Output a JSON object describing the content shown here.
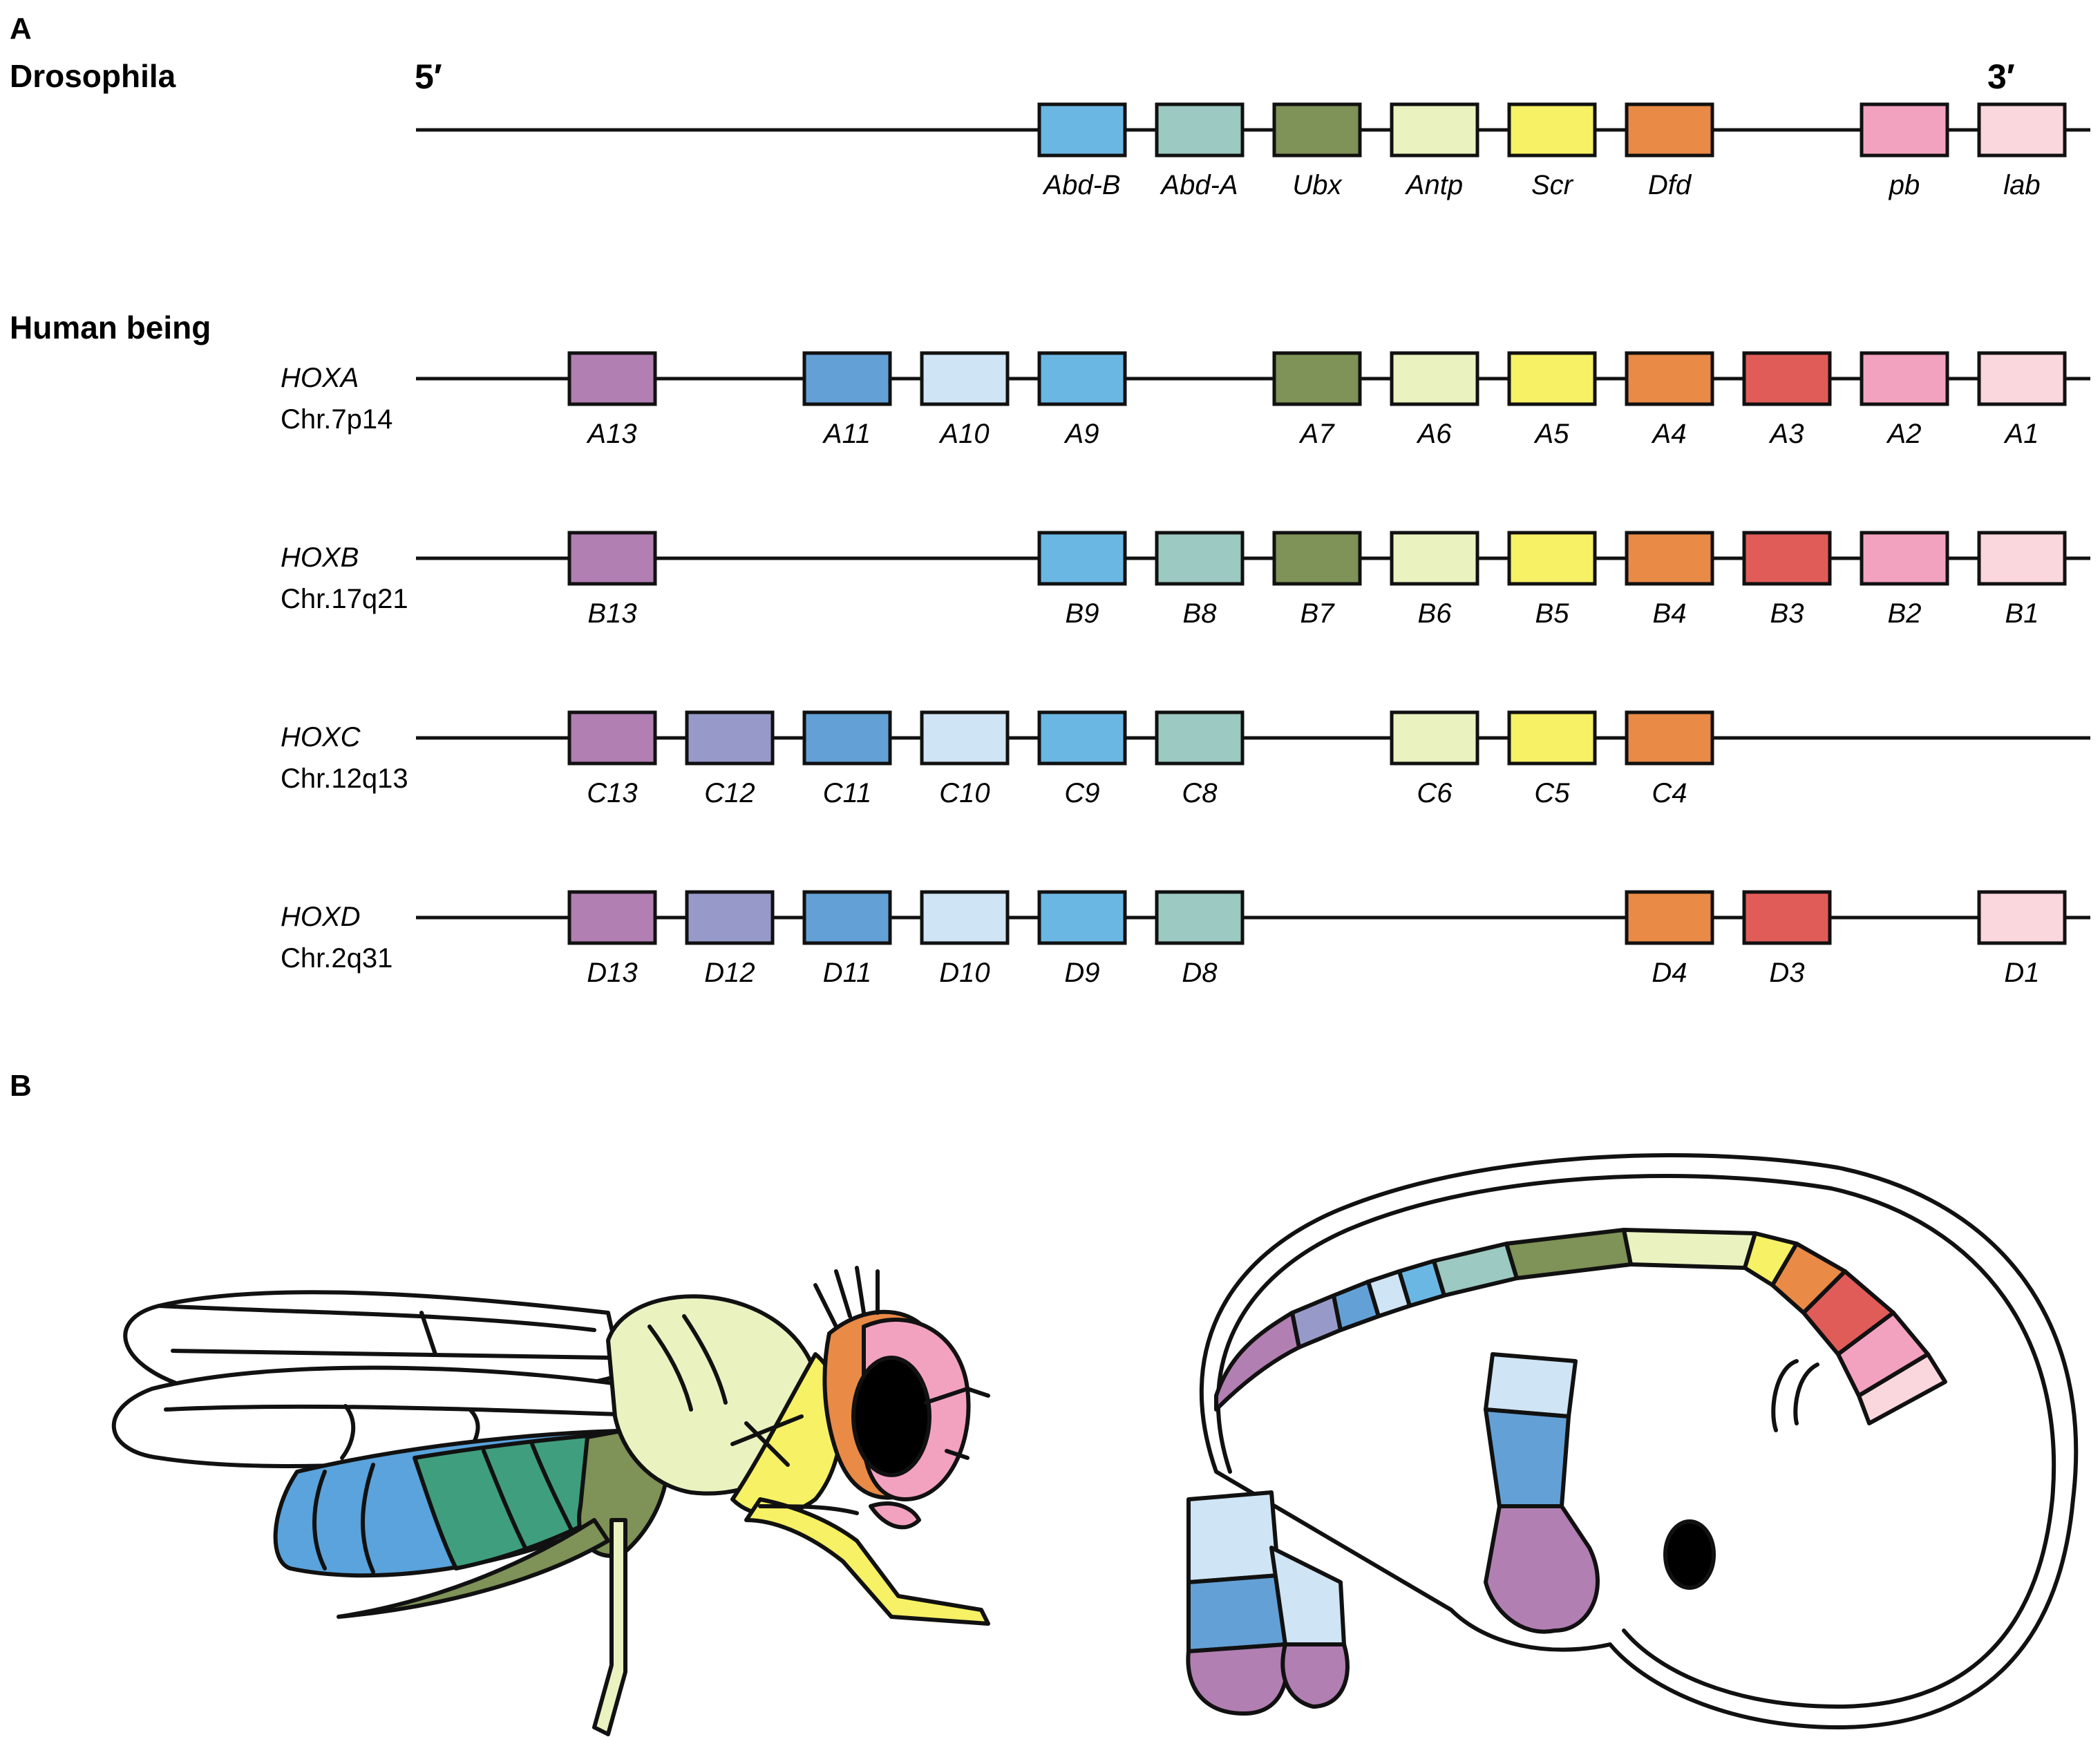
{
  "palette": {
    "p13": "#b27fb2",
    "p12": "#979ac9",
    "p11": "#63a0d6",
    "p10": "#cfe4f4",
    "p9": "#6bb7e4",
    "p8": "#9cc9c1",
    "p7": "#7f9257",
    "p6": "#eaf2c0",
    "p5": "#f6f165",
    "p4": "#e98a47",
    "p3": "#e05c59",
    "p2": "#f2a2bf",
    "p1": "#fad6dd"
  },
  "figure": {
    "panel_a": "A",
    "panel_b": "B",
    "drosophila_title": "Drosophila",
    "human_title": "Human being",
    "five_prime": "5′",
    "three_prime": "3′"
  },
  "drosophila": {
    "genes": [
      {
        "label": "Abd-B",
        "slot": 5,
        "color": "#6bb7e4"
      },
      {
        "label": "Abd-A",
        "slot": 6,
        "color": "#9cc9c1"
      },
      {
        "label": "Ubx",
        "slot": 7,
        "color": "#7f9257"
      },
      {
        "label": "Antp",
        "slot": 8,
        "color": "#eaf2c0"
      },
      {
        "label": "Scr",
        "slot": 9,
        "color": "#f6f165"
      },
      {
        "label": "Dfd",
        "slot": 10,
        "color": "#e98a47"
      },
      {
        "label": "pb",
        "slot": 12,
        "color": "#f2a2bf"
      },
      {
        "label": "lab",
        "slot": 13,
        "color": "#fad6dd"
      }
    ]
  },
  "clusters": [
    {
      "name": "HOXA",
      "chromosome": "Chr.7p14",
      "genes": [
        {
          "label": "A13",
          "slot": 1,
          "color": "#b27fb2"
        },
        {
          "label": "A11",
          "slot": 3,
          "color": "#63a0d6"
        },
        {
          "label": "A10",
          "slot": 4,
          "color": "#cfe4f4"
        },
        {
          "label": "A9",
          "slot": 5,
          "color": "#6bb7e4"
        },
        {
          "label": "A7",
          "slot": 7,
          "color": "#7f9257"
        },
        {
          "label": "A6",
          "slot": 8,
          "color": "#eaf2c0"
        },
        {
          "label": "A5",
          "slot": 9,
          "color": "#f6f165"
        },
        {
          "label": "A4",
          "slot": 10,
          "color": "#e98a47"
        },
        {
          "label": "A3",
          "slot": 11,
          "color": "#e05c59"
        },
        {
          "label": "A2",
          "slot": 12,
          "color": "#f2a2bf"
        },
        {
          "label": "A1",
          "slot": 13,
          "color": "#fad6dd"
        }
      ]
    },
    {
      "name": "HOXB",
      "chromosome": "Chr.17q21",
      "genes": [
        {
          "label": "B13",
          "slot": 1,
          "color": "#b27fb2"
        },
        {
          "label": "B9",
          "slot": 5,
          "color": "#6bb7e4"
        },
        {
          "label": "B8",
          "slot": 6,
          "color": "#9cc9c1"
        },
        {
          "label": "B7",
          "slot": 7,
          "color": "#7f9257"
        },
        {
          "label": "B6",
          "slot": 8,
          "color": "#eaf2c0"
        },
        {
          "label": "B5",
          "slot": 9,
          "color": "#f6f165"
        },
        {
          "label": "B4",
          "slot": 10,
          "color": "#e98a47"
        },
        {
          "label": "B3",
          "slot": 11,
          "color": "#e05c59"
        },
        {
          "label": "B2",
          "slot": 12,
          "color": "#f2a2bf"
        },
        {
          "label": "B1",
          "slot": 13,
          "color": "#fad6dd"
        }
      ]
    },
    {
      "name": "HOXC",
      "chromosome": "Chr.12q13",
      "genes": [
        {
          "label": "C13",
          "slot": 1,
          "color": "#b27fb2"
        },
        {
          "label": "C12",
          "slot": 2,
          "color": "#979ac9"
        },
        {
          "label": "C11",
          "slot": 3,
          "color": "#63a0d6"
        },
        {
          "label": "C10",
          "slot": 4,
          "color": "#cfe4f4"
        },
        {
          "label": "C9",
          "slot": 5,
          "color": "#6bb7e4"
        },
        {
          "label": "C8",
          "slot": 6,
          "color": "#9cc9c1"
        },
        {
          "label": "C6",
          "slot": 8,
          "color": "#eaf2c0"
        },
        {
          "label": "C5",
          "slot": 9,
          "color": "#f6f165"
        },
        {
          "label": "C4",
          "slot": 10,
          "color": "#e98a47"
        }
      ]
    },
    {
      "name": "HOXD",
      "chromosome": "Chr.2q31",
      "genes": [
        {
          "label": "D13",
          "slot": 1,
          "color": "#b27fb2"
        },
        {
          "label": "D12",
          "slot": 2,
          "color": "#979ac9"
        },
        {
          "label": "D11",
          "slot": 3,
          "color": "#63a0d6"
        },
        {
          "label": "D10",
          "slot": 4,
          "color": "#cfe4f4"
        },
        {
          "label": "D9",
          "slot": 5,
          "color": "#6bb7e4"
        },
        {
          "label": "D8",
          "slot": 6,
          "color": "#9cc9c1"
        },
        {
          "label": "D4",
          "slot": 10,
          "color": "#e98a47"
        },
        {
          "label": "D3",
          "slot": 11,
          "color": "#e05c59"
        },
        {
          "label": "D1",
          "slot": 13,
          "color": "#fad6dd"
        }
      ]
    }
  ],
  "illustrations": {
    "fly": "drosophila-fly-illustration",
    "embryo": "human-embryo-illustration"
  }
}
